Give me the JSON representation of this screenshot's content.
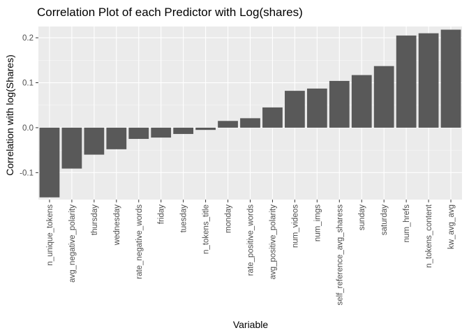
{
  "chart_data": {
    "type": "bar",
    "title": "Correlation Plot of each Predictor with Log(shares)",
    "xlabel": "Variable",
    "ylabel": "Correlation with log(Shares)",
    "ylim": [
      -0.16,
      0.225
    ],
    "yticks": [
      -0.1,
      0.0,
      0.1,
      0.2
    ],
    "ytick_labels": [
      "-0.1",
      "0.0",
      "0.1",
      "0.2"
    ],
    "grid": true,
    "categories": [
      "n_unique_tokens",
      "avg_negative_polarity",
      "thursday",
      "wednesday",
      "rate_negative_words",
      "friday",
      "tuesday",
      "n_tokens_title",
      "monday",
      "rate_positive_words",
      "avg_positive_polarity",
      "num_videos",
      "num_imgs",
      "self_reference_avg_sharess",
      "sunday",
      "saturday",
      "num_hrefs",
      "n_tokens_content",
      "kw_avg_avg"
    ],
    "values": [
      -0.155,
      -0.091,
      -0.06,
      -0.048,
      -0.025,
      -0.022,
      -0.014,
      -0.005,
      0.015,
      0.021,
      0.045,
      0.082,
      0.087,
      0.104,
      0.117,
      0.137,
      0.205,
      0.21,
      0.218
    ],
    "colors": {
      "bar": "#595959",
      "panel": "#ebebeb",
      "grid_major": "#ffffff",
      "axis_text": "#4d4d4d"
    }
  }
}
